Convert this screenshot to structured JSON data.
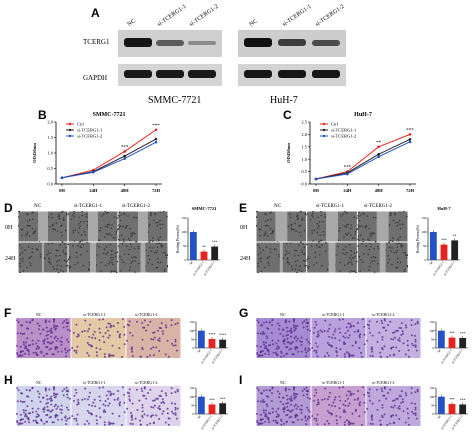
{
  "panelA": {
    "letter": "A",
    "row_labels": [
      "TCERG1",
      "GAPDH"
    ],
    "left_lanes": [
      "NC",
      "si-TCERG1-1",
      "si-TCERG1-2"
    ],
    "right_lanes": [
      "NC",
      "si-TCERG1-1",
      "si-TCERG1-2"
    ],
    "left_cell": "SMMC-7721",
    "right_cell": "HuH-7"
  },
  "panelB": {
    "letter": "B"
  },
  "panelC": {
    "letter": "C"
  },
  "panelD": {
    "letter": "D",
    "columns": [
      "NC",
      "si-TCERG1-1",
      "si-TCERG1-2"
    ],
    "rows": [
      "0H",
      "24H"
    ]
  },
  "panelE": {
    "letter": "E",
    "columns": [
      "NC",
      "si-TCERG1-1",
      "si-TCERG1-2"
    ],
    "rows": [
      "0H",
      "24H"
    ]
  },
  "panelF": {
    "letter": "F",
    "columns": [
      "NC",
      "si-TCERG1-1",
      "si-TCERG1-2"
    ]
  },
  "panelG": {
    "letter": "G",
    "columns": [
      "NC",
      "si-TCERG1-1",
      "si-TCERG1-2"
    ]
  },
  "panelH": {
    "letter": "H",
    "columns": [
      "NC",
      "si-TCERG1-1",
      "si-TCERG1-2"
    ]
  },
  "panelI": {
    "letter": "I",
    "columns": [
      "NC",
      "si-TCERG1-1",
      "si-TCERG1-2"
    ]
  },
  "colors": {
    "ctrl": "#e8231f",
    "si1": "#222222",
    "si2": "#2452c4",
    "crystal": "#8a5db8"
  },
  "chart_data": [
    {
      "id": "B",
      "type": "line",
      "title": "SMMC-7721",
      "ylabel": "OD450nm",
      "x": [
        "0H",
        "24H",
        "48H",
        "72H"
      ],
      "ylim": [
        0.0,
        2.0
      ],
      "yticks": [
        "0.0",
        "0.5",
        "1.0",
        "1.5",
        "2.0"
      ],
      "series": [
        {
          "name": "Ctrl",
          "values": [
            0.2,
            0.45,
            1.05,
            1.75
          ]
        },
        {
          "name": "si-TCERG1-1",
          "values": [
            0.2,
            0.4,
            0.9,
            1.45
          ]
        },
        {
          "name": "si-TCERG1-2",
          "values": [
            0.2,
            0.38,
            0.82,
            1.35
          ]
        }
      ],
      "annotations": [
        "***",
        "***"
      ]
    },
    {
      "id": "C",
      "type": "line",
      "title": "HuH-7",
      "ylabel": "OD450nm",
      "x": [
        "0H",
        "24H",
        "48H",
        "72H"
      ],
      "ylim": [
        0.0,
        2.5
      ],
      "yticks": [
        "0.0",
        "0.5",
        "1.0",
        "1.5",
        "2.0",
        "2.5"
      ],
      "series": [
        {
          "name": "Ctrl",
          "values": [
            0.2,
            0.5,
            1.5,
            2.0
          ]
        },
        {
          "name": "si-TCERG1-1",
          "values": [
            0.2,
            0.45,
            1.2,
            1.8
          ]
        },
        {
          "name": "si-TCERG1-2",
          "values": [
            0.2,
            0.4,
            1.1,
            1.7
          ]
        }
      ],
      "annotations": [
        "***",
        "**",
        "***"
      ]
    },
    {
      "id": "D-bar",
      "type": "bar",
      "title": "SMMC-7721",
      "ylabel": "Healing Percent(%)",
      "categories": [
        "NC",
        "si-TCERG1-1",
        "si-TCERG1-2"
      ],
      "values": [
        100,
        30,
        48
      ],
      "ylim": [
        0,
        150
      ],
      "annotations": [
        "**",
        "***"
      ]
    },
    {
      "id": "E-bar",
      "type": "bar",
      "title": "HuH-7",
      "ylabel": "Healing Percent(%)",
      "categories": [
        "NC",
        "si-TCERG1-1",
        "si-TCERG1-2"
      ],
      "values": [
        100,
        55,
        70
      ],
      "ylim": [
        0,
        150
      ],
      "annotations": [
        "***",
        "**"
      ]
    },
    {
      "id": "F-bar",
      "type": "bar",
      "categories": [
        "NC",
        "si-TCERG1-1",
        "si-TCERG1-2"
      ],
      "values": [
        100,
        52,
        48
      ],
      "ylim": [
        0,
        150
      ],
      "annotations": [
        "****",
        "****"
      ]
    },
    {
      "id": "G-bar",
      "type": "bar",
      "categories": [
        "NC",
        "si-TCERG1-1",
        "si-TCERG1-2"
      ],
      "values": [
        100,
        60,
        58
      ],
      "ylim": [
        0,
        150
      ],
      "annotations": [
        "***",
        "***"
      ]
    },
    {
      "id": "H-bar",
      "type": "bar",
      "categories": [
        "NC",
        "si-TCERG1-1",
        "si-TCERG1-2"
      ],
      "values": [
        100,
        55,
        62
      ],
      "ylim": [
        0,
        150
      ],
      "annotations": [
        "***",
        "***"
      ]
    },
    {
      "id": "I-bar",
      "type": "bar",
      "categories": [
        "NC",
        "si-TCERG1-1",
        "si-TCERG1-2"
      ],
      "values": [
        100,
        58,
        55
      ],
      "ylim": [
        0,
        150
      ],
      "annotations": [
        "***",
        "***"
      ]
    }
  ]
}
